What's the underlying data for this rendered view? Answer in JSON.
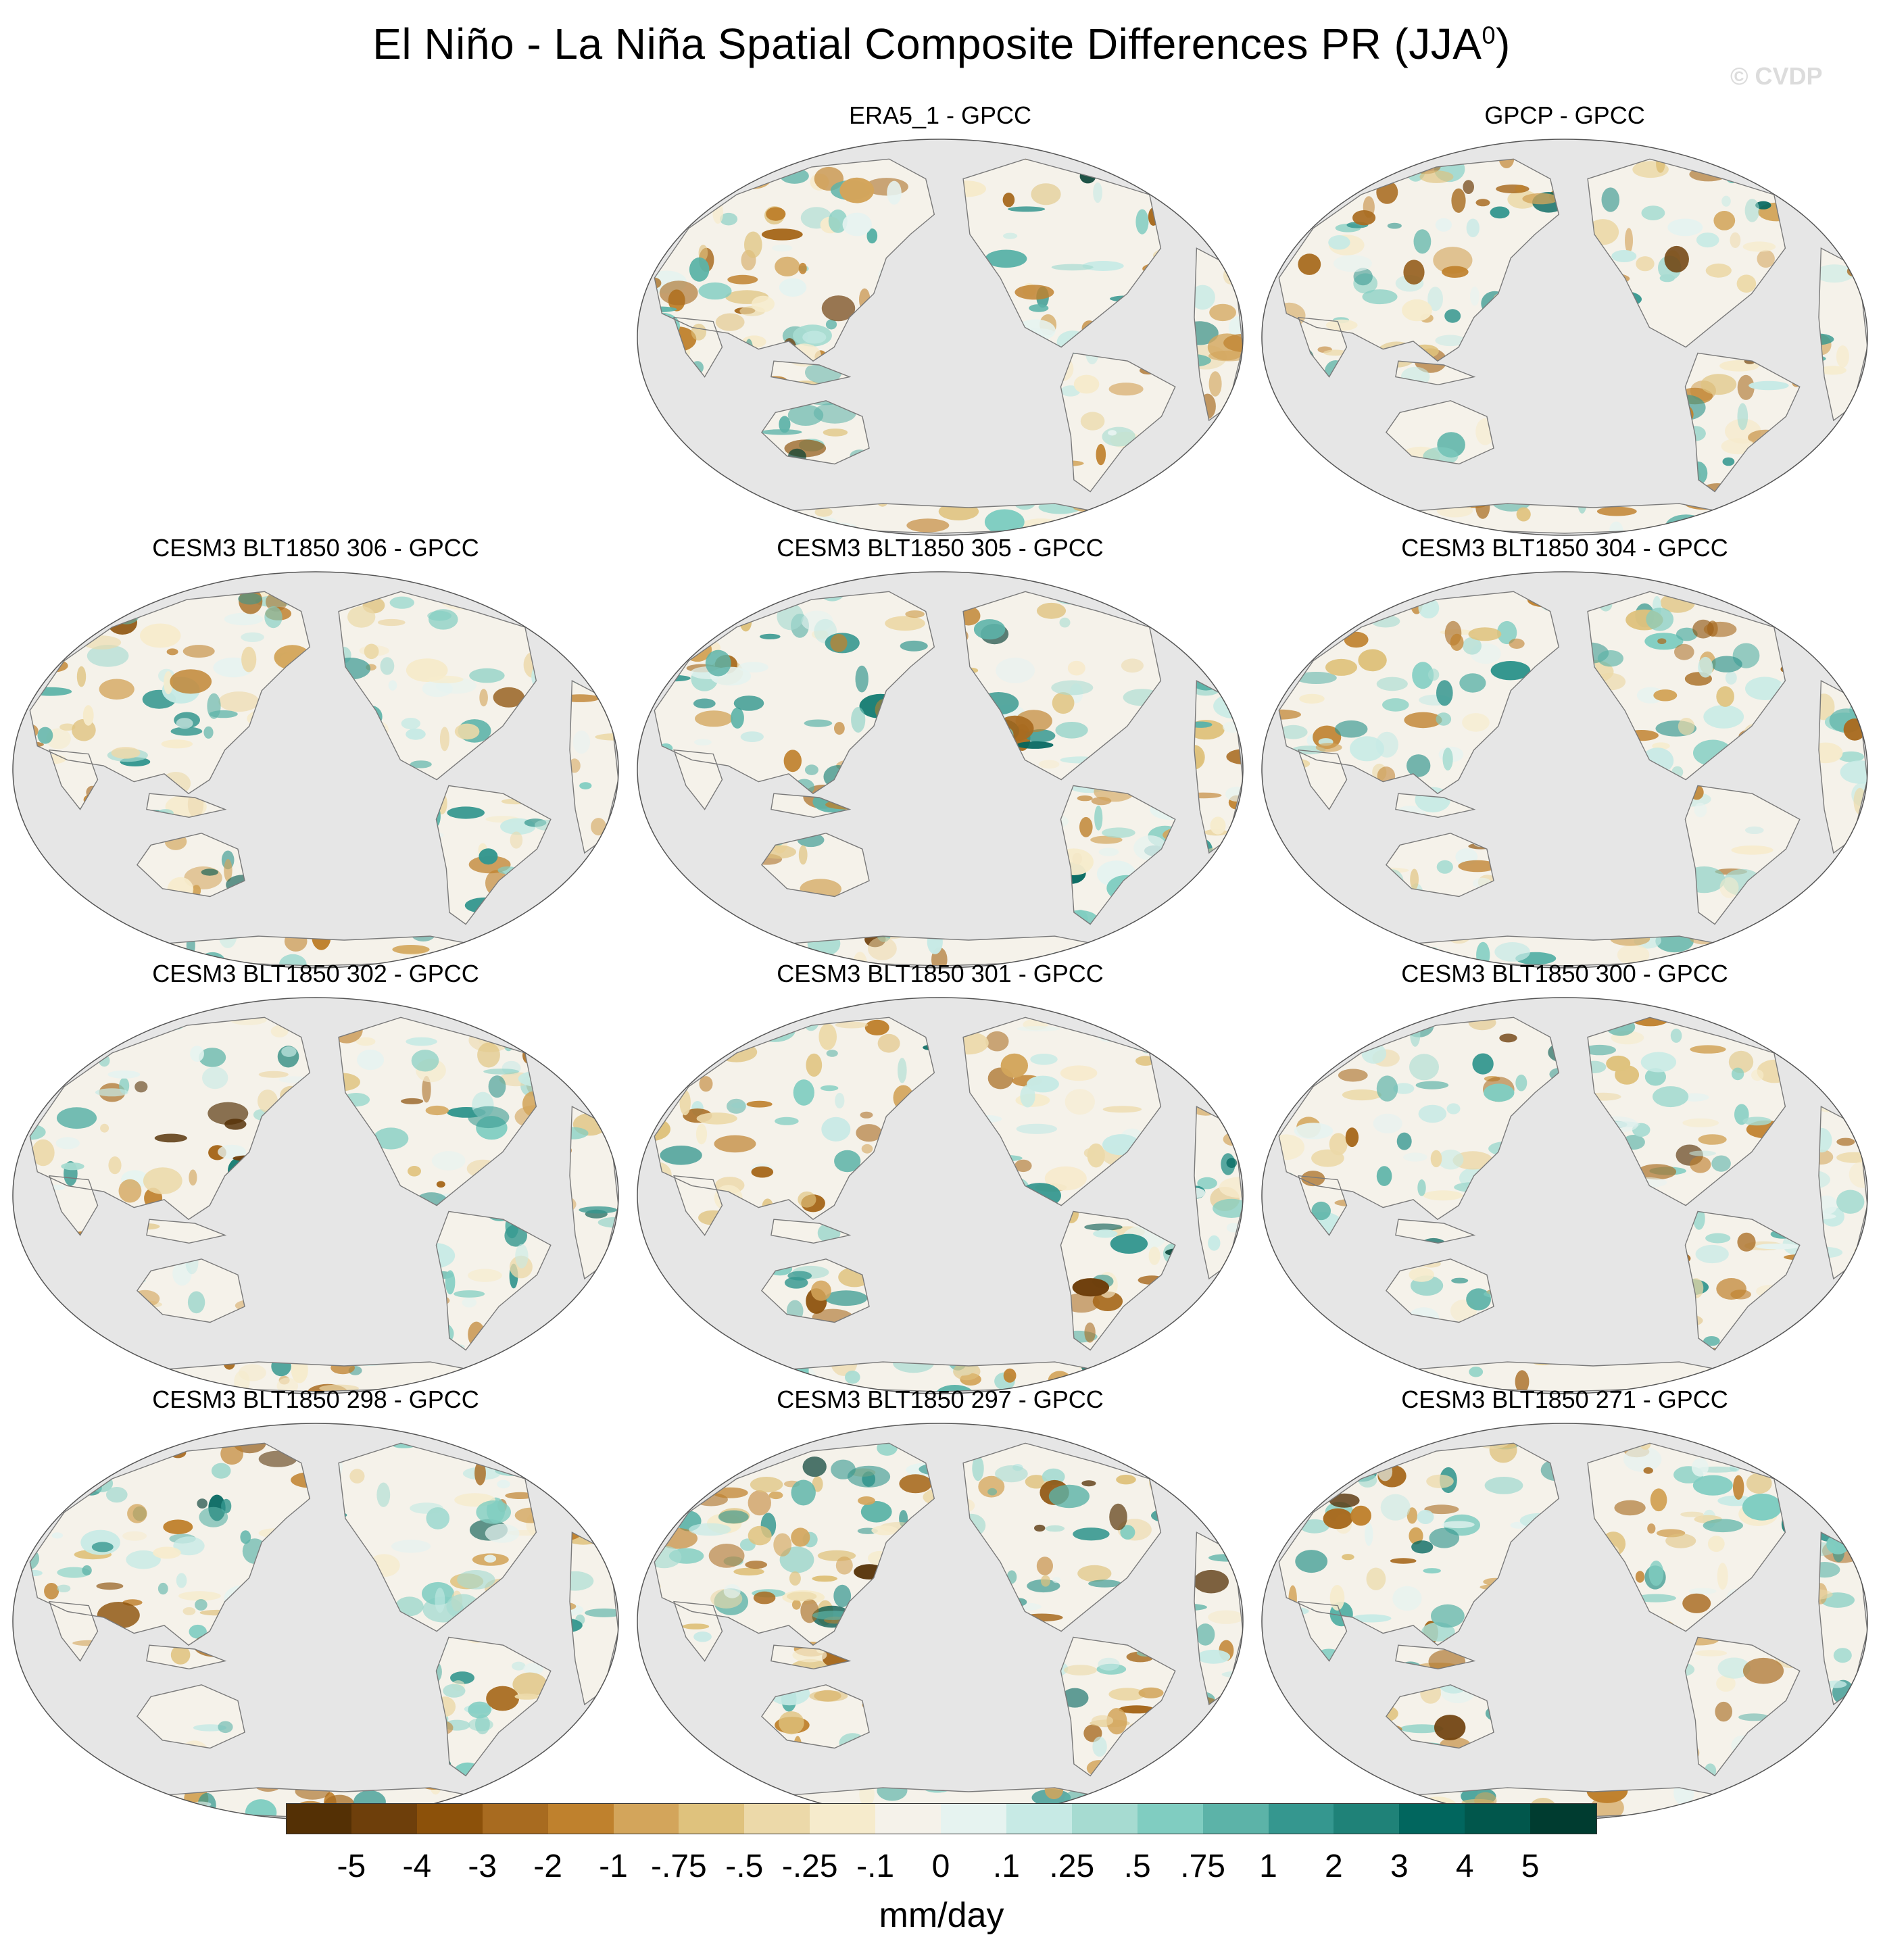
{
  "figure": {
    "title": "El Niño - La Niña Spatial Composite Differences PR (JJA",
    "title_superscript": "0",
    "title_close": ")",
    "watermark": "© CVDP"
  },
  "panels": [
    {
      "label": "ERA5_1 - GPCC",
      "seed": 11
    },
    {
      "label": "GPCP - GPCC",
      "seed": 23
    },
    {
      "label": "CESM3 BLT1850 306 - GPCC",
      "seed": 37
    },
    {
      "label": "CESM3 BLT1850 305 - GPCC",
      "seed": 41
    },
    {
      "label": "CESM3 BLT1850 304 - GPCC",
      "seed": 53
    },
    {
      "label": "CESM3 BLT1850 302 - GPCC",
      "seed": 67
    },
    {
      "label": "CESM3 BLT1850 301 - GPCC",
      "seed": 71
    },
    {
      "label": "CESM3 BLT1850 300 - GPCC",
      "seed": 83
    },
    {
      "label": "CESM3 BLT1850 298 - GPCC",
      "seed": 97
    },
    {
      "label": "CESM3 BLT1850 297 - GPCC",
      "seed": 101
    },
    {
      "label": "CESM3 BLT1850 271 - GPCC",
      "seed": 113
    }
  ],
  "colorbar": {
    "units": "mm/day",
    "tick_labels": [
      "-5",
      "-4",
      "-3",
      "-2",
      "-1",
      "-.75",
      "-.5",
      "-.25",
      "-.1",
      "0",
      ".1",
      ".25",
      ".5",
      ".75",
      "1",
      "2",
      "3",
      "4",
      "5"
    ],
    "colors": [
      "#543005",
      "#6e3f0b",
      "#8c510a",
      "#a86b20",
      "#bf812d",
      "#d3a55b",
      "#dfc27d",
      "#ecd9a9",
      "#f6ebcc",
      "#f5f2ea",
      "#e6f3f0",
      "#c7eae5",
      "#a6dbd1",
      "#80cdc1",
      "#5cb3a8",
      "#35978f",
      "#1f8278",
      "#01665e",
      "#01574c",
      "#003c30"
    ]
  },
  "map_colors": {
    "ocean": "#e6e6e6",
    "coast": "#7a7a7a"
  }
}
